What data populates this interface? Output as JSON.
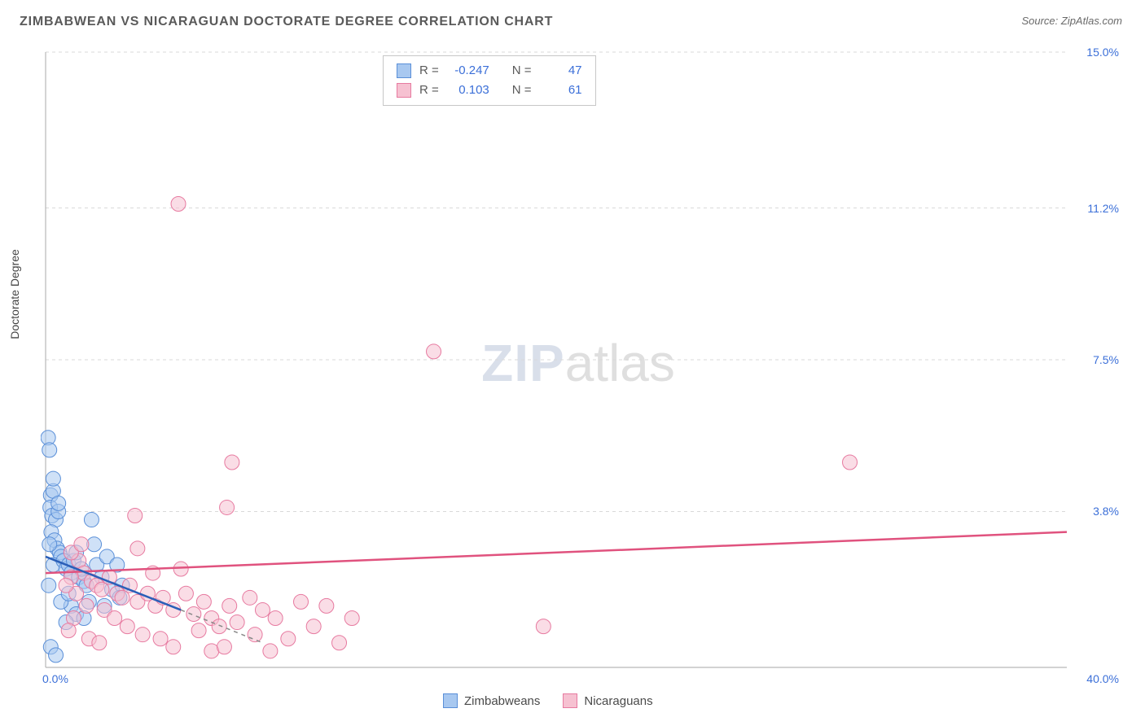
{
  "title": "ZIMBABWEAN VS NICARAGUAN DOCTORATE DEGREE CORRELATION CHART",
  "source": "Source: ZipAtlas.com",
  "y_axis_label": "Doctorate Degree",
  "watermark": {
    "part1": "ZIP",
    "part2": "atlas"
  },
  "chart": {
    "type": "scatter",
    "xlim": [
      0,
      40
    ],
    "ylim": [
      0,
      15
    ],
    "x_ticks": [
      {
        "v": 0,
        "label": "0.0%"
      },
      {
        "v": 40,
        "label": "40.0%"
      }
    ],
    "y_ticks": [
      {
        "v": 3.8,
        "label": "3.8%"
      },
      {
        "v": 7.5,
        "label": "7.5%"
      },
      {
        "v": 11.2,
        "label": "11.2%"
      },
      {
        "v": 15.0,
        "label": "15.0%"
      }
    ],
    "gridline_color": "#d9d9d9",
    "axis_color": "#b8b8b8",
    "background_color": "#ffffff",
    "marker_radius": 9,
    "marker_opacity": 0.55,
    "line_width_solid": 2.5,
    "line_width_dash": 1.5,
    "series": [
      {
        "id": "zimbabweans",
        "label": "Zimbabweans",
        "fill": "#a8c8f0",
        "stroke": "#5a8fd8",
        "line_color": "#2a5fb8",
        "R": "-0.247",
        "N": "47",
        "trend": {
          "x1": 0,
          "y1": 2.7,
          "x2": 5.3,
          "y2": 1.4,
          "dash_ext_x": 8.5,
          "dash_ext_y": 0.6
        },
        "points": [
          [
            0.1,
            5.6
          ],
          [
            0.15,
            5.3
          ],
          [
            0.2,
            4.2
          ],
          [
            0.18,
            3.9
          ],
          [
            0.3,
            4.3
          ],
          [
            0.25,
            3.7
          ],
          [
            0.4,
            3.6
          ],
          [
            0.22,
            3.3
          ],
          [
            0.35,
            3.1
          ],
          [
            0.5,
            3.8
          ],
          [
            0.45,
            2.9
          ],
          [
            0.55,
            2.8
          ],
          [
            0.6,
            2.7
          ],
          [
            0.3,
            2.5
          ],
          [
            0.7,
            2.6
          ],
          [
            0.8,
            2.4
          ],
          [
            0.9,
            2.5
          ],
          [
            1.0,
            2.3
          ],
          [
            1.1,
            2.6
          ],
          [
            1.3,
            2.2
          ],
          [
            1.2,
            2.8
          ],
          [
            1.5,
            2.1
          ],
          [
            1.4,
            2.4
          ],
          [
            1.6,
            2.0
          ],
          [
            1.8,
            3.6
          ],
          [
            2.0,
            2.5
          ],
          [
            2.2,
            2.2
          ],
          [
            2.4,
            2.7
          ],
          [
            2.6,
            1.9
          ],
          [
            2.8,
            2.5
          ],
          [
            3.0,
            2.0
          ],
          [
            1.0,
            1.5
          ],
          [
            1.2,
            1.3
          ],
          [
            0.8,
            1.1
          ],
          [
            1.5,
            1.2
          ],
          [
            0.2,
            0.5
          ],
          [
            0.6,
            1.6
          ],
          [
            0.9,
            1.8
          ],
          [
            0.4,
            0.3
          ],
          [
            1.7,
            1.6
          ],
          [
            2.9,
            1.7
          ],
          [
            0.5,
            4.0
          ],
          [
            0.3,
            4.6
          ],
          [
            0.15,
            3.0
          ],
          [
            1.9,
            3.0
          ],
          [
            2.3,
            1.5
          ],
          [
            0.12,
            2.0
          ]
        ]
      },
      {
        "id": "nicaraguans",
        "label": "Nicaraguans",
        "fill": "#f6c1d1",
        "stroke": "#e77aa0",
        "line_color": "#e0527e",
        "R": "0.103",
        "N": "61",
        "trend": {
          "x1": 0,
          "y1": 2.3,
          "x2": 40,
          "y2": 3.3
        },
        "points": [
          [
            5.2,
            11.3
          ],
          [
            15.2,
            7.7
          ],
          [
            7.3,
            5.0
          ],
          [
            31.5,
            5.0
          ],
          [
            7.1,
            3.9
          ],
          [
            3.5,
            3.7
          ],
          [
            3.6,
            2.9
          ],
          [
            1.3,
            2.6
          ],
          [
            1.5,
            2.3
          ],
          [
            1.8,
            2.1
          ],
          [
            2.0,
            2.0
          ],
          [
            2.2,
            1.9
          ],
          [
            2.5,
            2.2
          ],
          [
            2.8,
            1.8
          ],
          [
            3.0,
            1.7
          ],
          [
            3.3,
            2.0
          ],
          [
            3.6,
            1.6
          ],
          [
            4.0,
            1.8
          ],
          [
            4.3,
            1.5
          ],
          [
            4.6,
            1.7
          ],
          [
            5.0,
            1.4
          ],
          [
            5.5,
            1.8
          ],
          [
            5.8,
            1.3
          ],
          [
            6.2,
            1.6
          ],
          [
            6.5,
            1.2
          ],
          [
            6.0,
            0.9
          ],
          [
            6.8,
            1.0
          ],
          [
            7.2,
            1.5
          ],
          [
            7.5,
            1.1
          ],
          [
            8.0,
            1.7
          ],
          [
            8.2,
            0.8
          ],
          [
            8.5,
            1.4
          ],
          [
            9.0,
            1.2
          ],
          [
            9.5,
            0.7
          ],
          [
            10.0,
            1.6
          ],
          [
            10.5,
            1.0
          ],
          [
            11.0,
            1.5
          ],
          [
            11.5,
            0.6
          ],
          [
            12.0,
            1.2
          ],
          [
            19.5,
            1.0
          ],
          [
            5.0,
            0.5
          ],
          [
            4.5,
            0.7
          ],
          [
            6.5,
            0.4
          ],
          [
            7.0,
            0.5
          ],
          [
            8.8,
            0.4
          ],
          [
            1.0,
            2.2
          ],
          [
            1.2,
            1.8
          ],
          [
            1.6,
            1.5
          ],
          [
            2.3,
            1.4
          ],
          [
            2.7,
            1.2
          ],
          [
            3.2,
            1.0
          ],
          [
            3.8,
            0.8
          ],
          [
            4.2,
            2.3
          ],
          [
            1.0,
            2.8
          ],
          [
            1.4,
            3.0
          ],
          [
            0.8,
            2.0
          ],
          [
            1.1,
            1.2
          ],
          [
            0.9,
            0.9
          ],
          [
            1.7,
            0.7
          ],
          [
            2.1,
            0.6
          ],
          [
            5.3,
            2.4
          ]
        ]
      }
    ]
  },
  "stats_box_prefix_R": "R =",
  "stats_box_prefix_N": "N =",
  "colors": {
    "tick_label": "#3b6fd8",
    "title": "#5a5a5a"
  }
}
